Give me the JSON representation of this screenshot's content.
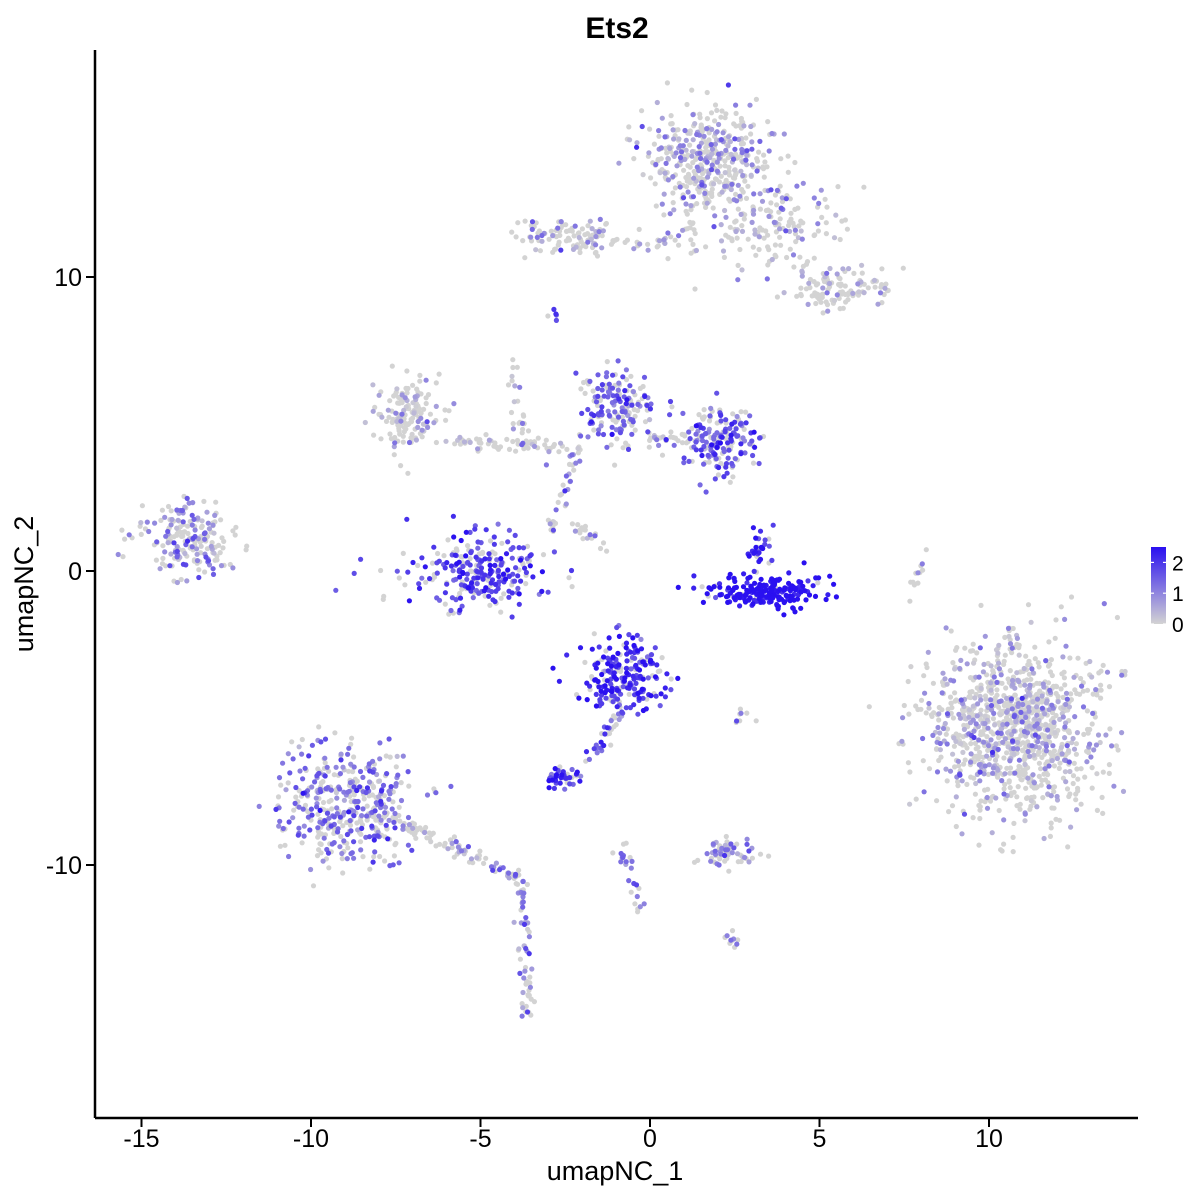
{
  "chart_data": {
    "type": "scatter",
    "title": "Ets2",
    "xlabel": "umapNC_1",
    "ylabel": "umapNC_2",
    "xlim": [
      -16.2,
      14.6
    ],
    "ylim": [
      -17.6,
      17.6
    ],
    "x_ticks": [
      -15,
      -10,
      -5,
      0,
      5,
      10
    ],
    "x_tick_labels": [
      "-15",
      "-10",
      "-5",
      "0",
      "5",
      "10"
    ],
    "y_ticks": [
      -10,
      0,
      10
    ],
    "y_tick_labels": [
      "-10",
      "0",
      "10"
    ],
    "grid": false,
    "legend_position": "right",
    "color_scale": {
      "low_color": "#d3d3d3",
      "high_color": "#2a10f0",
      "min": 0,
      "max": 2.5,
      "ticks": [
        0,
        1,
        2
      ],
      "tick_labels": [
        "0",
        "1",
        "2"
      ]
    },
    "clusters": [
      {
        "id": "top-blob",
        "center": [
          1.7,
          14.0
        ],
        "spread": [
          1.3,
          1.2
        ],
        "n": 420,
        "expr": 0.5
      },
      {
        "id": "top-arm-left",
        "center": [
          -2.3,
          11.4
        ],
        "spread": [
          1.2,
          0.4
        ],
        "n": 110,
        "expr": 0.35
      },
      {
        "id": "top-arm-right",
        "center": [
          3.6,
          11.8
        ],
        "spread": [
          1.4,
          0.9
        ],
        "n": 140,
        "expr": 0.35
      },
      {
        "id": "top-tail",
        "center": [
          5.5,
          9.6
        ],
        "spread": [
          0.9,
          0.5
        ],
        "n": 110,
        "expr": 0.2
      },
      {
        "id": "mid-left",
        "center": [
          -7.1,
          5.4
        ],
        "spread": [
          0.7,
          0.8
        ],
        "n": 150,
        "expr": 0.25
      },
      {
        "id": "mid-center",
        "center": [
          -1.0,
          5.5
        ],
        "spread": [
          0.7,
          0.9
        ],
        "n": 170,
        "expr": 1.2
      },
      {
        "id": "mid-right",
        "center": [
          2.1,
          4.3
        ],
        "spread": [
          0.8,
          0.8
        ],
        "n": 180,
        "expr": 1.3
      },
      {
        "id": "left-cluster",
        "center": [
          -13.5,
          1.1
        ],
        "spread": [
          0.9,
          0.8
        ],
        "n": 200,
        "expr": 0.7
      },
      {
        "id": "arc-left",
        "center": [
          -5.2,
          0.0
        ],
        "spread": [
          1.4,
          0.9
        ],
        "n": 260,
        "expr": 1.6
      },
      {
        "id": "arc-right",
        "center": [
          3.4,
          -0.7
        ],
        "spread": [
          1.1,
          0.35
        ],
        "n": 200,
        "expr": 2.3
      },
      {
        "id": "arc-right-top",
        "center": [
          3.2,
          0.7
        ],
        "spread": [
          0.3,
          0.5
        ],
        "n": 30,
        "expr": 1.8
      },
      {
        "id": "mid-low",
        "center": [
          -0.8,
          -3.6
        ],
        "spread": [
          0.8,
          0.8
        ],
        "n": 220,
        "expr": 1.8
      },
      {
        "id": "bottom-left",
        "center": [
          -9.0,
          -8.0
        ],
        "spread": [
          1.4,
          1.3
        ],
        "n": 420,
        "expr": 1.0
      },
      {
        "id": "bottom-small",
        "center": [
          -2.6,
          -7.0
        ],
        "spread": [
          0.4,
          0.25
        ],
        "n": 45,
        "expr": 1.6
      },
      {
        "id": "bottom-right-small",
        "center": [
          2.3,
          -9.6
        ],
        "spread": [
          0.6,
          0.3
        ],
        "n": 60,
        "expr": 0.6
      },
      {
        "id": "big-right",
        "center": [
          10.8,
          -5.3
        ],
        "spread": [
          1.7,
          1.9
        ],
        "n": 1100,
        "expr": 0.35
      }
    ],
    "branches": [
      {
        "from": [
          -7.8,
          -8.3
        ],
        "to": [
          -3.8,
          -10.5
        ],
        "n": 90,
        "expr": 0.6
      },
      {
        "from": [
          -3.8,
          -10.5
        ],
        "to": [
          -3.6,
          -15.0
        ],
        "n": 60,
        "expr": 0.8
      },
      {
        "from": [
          -0.8,
          -4.6
        ],
        "to": [
          -1.7,
          -6.4
        ],
        "n": 30,
        "expr": 1.4
      },
      {
        "from": [
          -0.8,
          -9.3
        ],
        "to": [
          -0.2,
          -11.8
        ],
        "n": 25,
        "expr": 0.9
      },
      {
        "from": [
          -0.5,
          11.0
        ],
        "to": [
          1.0,
          11.4
        ],
        "n": 20,
        "expr": 0.3
      },
      {
        "from": [
          1.2,
          12.6
        ],
        "to": [
          1.2,
          10.7
        ],
        "n": 15,
        "expr": 0.4
      },
      {
        "from": [
          -4.2,
          7.4
        ],
        "to": [
          -3.6,
          4.0
        ],
        "n": 25,
        "expr": 0.1
      },
      {
        "from": [
          -6.0,
          4.4
        ],
        "to": [
          -2.0,
          4.2
        ],
        "n": 60,
        "expr": 0.25
      },
      {
        "from": [
          -2.2,
          3.8
        ],
        "to": [
          -3.0,
          1.3
        ],
        "n": 30,
        "expr": 0.6
      },
      {
        "from": [
          -2.3,
          1.6
        ],
        "to": [
          -1.3,
          0.7
        ],
        "n": 20,
        "expr": 0.2
      },
      {
        "from": [
          0.0,
          4.5
        ],
        "to": [
          1.2,
          4.5
        ],
        "n": 25,
        "expr": 0.6
      },
      {
        "from": [
          7.7,
          -0.9
        ],
        "to": [
          8.2,
          0.8
        ],
        "n": 12,
        "expr": 0.2
      },
      {
        "from": [
          2.7,
          -5.0
        ],
        "to": [
          3.1,
          -5.0
        ],
        "n": 8,
        "expr": 1.0
      },
      {
        "from": [
          2.3,
          -12.3
        ],
        "to": [
          2.5,
          -12.7
        ],
        "n": 10,
        "expr": 0.8
      },
      {
        "from": [
          -2.9,
          8.6
        ],
        "to": [
          -2.7,
          8.9
        ],
        "n": 5,
        "expr": 1.4
      }
    ]
  }
}
